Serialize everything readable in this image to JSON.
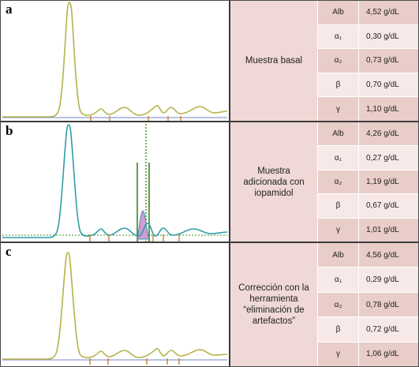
{
  "colors": {
    "trace_olive": "#b6b34c",
    "trace_teal": "#2f9ea8",
    "baseline_blue": "#8c9ed2",
    "dashed_green": "#3e8e1e",
    "marker_green": "#2e7a16",
    "artifact_pink": "#d59ad6",
    "tick_orange": "#d07a2c",
    "row_dark": "#e9cdc9",
    "row_light": "#f6e9e7"
  },
  "panels": [
    {
      "letter": "a",
      "sample": "Muestra basal",
      "fractions": [
        {
          "name": "Alb",
          "value": "4,52 g/dL"
        },
        {
          "name": "α₁",
          "value": "0,30 g/dL"
        },
        {
          "name": "α₂",
          "value": "0,73 g/dL"
        },
        {
          "name": "β",
          "value": "0,70 g/dL"
        },
        {
          "name": "γ",
          "value": "1,10 g/dL"
        }
      ]
    },
    {
      "letter": "b",
      "sample": "Muestra adicionada con iopamidol",
      "fractions": [
        {
          "name": "Alb",
          "value": "4,26 g/dL"
        },
        {
          "name": "α₁",
          "value": "0,27 g/dL"
        },
        {
          "name": "α₂",
          "value": "1,19 g/dL"
        },
        {
          "name": "β",
          "value": "0,67 g/dL"
        },
        {
          "name": "γ",
          "value": "1,01 g/dL"
        }
      ]
    },
    {
      "letter": "c",
      "sample": "Corrección con la herramienta “eliminación de artefactos”",
      "fractions": [
        {
          "name": "Alb",
          "value": "4,56 g/dL"
        },
        {
          "name": "α₁",
          "value": "0,29 g/dL"
        },
        {
          "name": "α₂",
          "value": "0,78 g/dL"
        },
        {
          "name": "β",
          "value": "0,72 g/dL"
        },
        {
          "name": "γ",
          "value": "1,06 g/dL"
        }
      ]
    }
  ]
}
